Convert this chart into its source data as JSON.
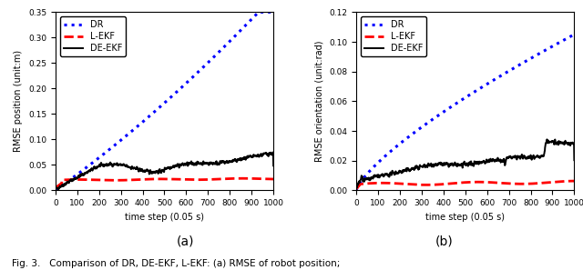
{
  "left_plot": {
    "ylabel": "RMSE position (unit:m)",
    "xlabel": "time step (0.05 s)",
    "subtitle": "(a)",
    "ylim": [
      0,
      0.35
    ],
    "xlim": [
      0,
      1000
    ],
    "yticks": [
      0,
      0.05,
      0.1,
      0.15,
      0.2,
      0.25,
      0.3,
      0.35
    ],
    "xticks": [
      0,
      100,
      200,
      300,
      400,
      500,
      600,
      700,
      800,
      900,
      1000
    ]
  },
  "right_plot": {
    "ylabel": "RMSE orientation (unit:rad)",
    "xlabel": "time step (0.05 s)",
    "subtitle": "(b)",
    "ylim": [
      0,
      0.12
    ],
    "xlim": [
      0,
      1000
    ],
    "yticks": [
      0,
      0.02,
      0.04,
      0.06,
      0.08,
      0.1,
      0.12
    ],
    "xticks": [
      0,
      100,
      200,
      300,
      400,
      500,
      600,
      700,
      800,
      900,
      1000
    ]
  },
  "legend_labels": [
    "DR",
    "L-EKF",
    "DE-EKF"
  ],
  "dr_color": "#0000FF",
  "lekf_color": "#FF0000",
  "deekf_color": "#000000",
  "caption": "Fig. 3.   Comparison of DR, DE-EKF, L-EKF: (a) RMSE of robot position;"
}
